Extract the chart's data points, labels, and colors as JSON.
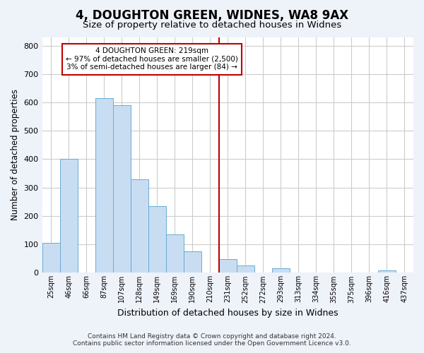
{
  "title": "4, DOUGHTON GREEN, WIDNES, WA8 9AX",
  "subtitle": "Size of property relative to detached houses in Widnes",
  "xlabel": "Distribution of detached houses by size in Widnes",
  "ylabel": "Number of detached properties",
  "bar_labels": [
    "25sqm",
    "46sqm",
    "66sqm",
    "87sqm",
    "107sqm",
    "128sqm",
    "149sqm",
    "169sqm",
    "190sqm",
    "210sqm",
    "231sqm",
    "252sqm",
    "272sqm",
    "293sqm",
    "313sqm",
    "334sqm",
    "355sqm",
    "375sqm",
    "396sqm",
    "416sqm",
    "437sqm"
  ],
  "bar_values": [
    105,
    400,
    0,
    615,
    590,
    330,
    235,
    135,
    75,
    0,
    48,
    25,
    0,
    15,
    0,
    0,
    0,
    0,
    0,
    8,
    0
  ],
  "bar_color": "#c8ddf2",
  "bar_edge_color": "#6aaad4",
  "vline_color": "#c00000",
  "annotation_title": "4 DOUGHTON GREEN: 219sqm",
  "annotation_line1": "← 97% of detached houses are smaller (2,500)",
  "annotation_line2": "3% of semi-detached houses are larger (84) →",
  "annotation_box_color": "#ffffff",
  "annotation_box_edge": "#c00000",
  "footer1": "Contains HM Land Registry data © Crown copyright and database right 2024.",
  "footer2": "Contains public sector information licensed under the Open Government Licence v3.0.",
  "ylim": [
    0,
    830
  ],
  "background_color": "#eef2f9",
  "plot_background": "#ffffff"
}
